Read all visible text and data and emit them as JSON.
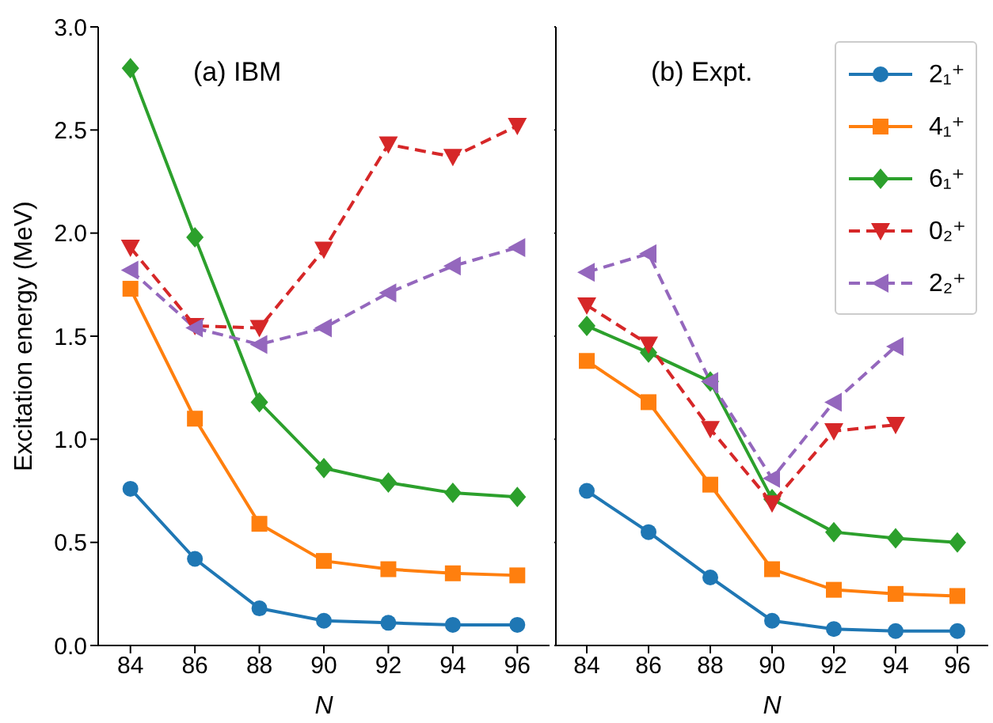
{
  "chart_data": [
    {
      "type": "line",
      "xlabel": "N",
      "ylabel": "Excitation energy (MeV)",
      "annotations": [
        "(a) IBM"
      ],
      "x": [
        84,
        86,
        88,
        90,
        92,
        94,
        96
      ],
      "xlim": [
        83,
        97
      ],
      "xticks": [
        84,
        86,
        88,
        90,
        92,
        94,
        96
      ],
      "ylim": [
        0,
        3
      ],
      "yticks": [
        {
          "value": 0,
          "label": "0.0"
        },
        {
          "value": 0.5,
          "label": "0.5"
        },
        {
          "value": 1,
          "label": "1.0"
        },
        {
          "value": 1.5,
          "label": "1.5"
        },
        {
          "value": 2,
          "label": "2.0"
        },
        {
          "value": 2.5,
          "label": "2.5"
        },
        {
          "value": 3,
          "label": "3.0"
        }
      ],
      "grid": false,
      "legend": false,
      "series": [
        {
          "color": "#1f77b4",
          "marker": "circle",
          "line_style": "solid",
          "values": [
            0.76,
            0.42,
            0.18,
            0.12,
            0.11,
            0.1,
            0.1
          ]
        },
        {
          "color": "#ff7f0e",
          "marker": "square",
          "line_style": "solid",
          "values": [
            1.73,
            1.1,
            0.59,
            0.41,
            0.37,
            0.35,
            0.34
          ]
        },
        {
          "color": "#2ca02c",
          "marker": "diamond",
          "line_style": "solid",
          "values": [
            2.8,
            1.98,
            1.18,
            0.86,
            0.79,
            0.74,
            0.72
          ]
        },
        {
          "color": "#d62728",
          "marker": "triangle-down",
          "line_style": "dashed",
          "values": [
            1.93,
            1.55,
            1.54,
            1.92,
            2.43,
            2.37,
            2.52
          ]
        },
        {
          "color": "#9467bd",
          "marker": "triangle-left",
          "line_style": "dashed",
          "values": [
            1.82,
            1.54,
            1.46,
            1.54,
            1.71,
            1.84,
            1.93
          ]
        }
      ]
    },
    {
      "type": "line",
      "xlabel": "N",
      "annotations": [
        "(b) Expt."
      ],
      "x": [
        84,
        86,
        88,
        90,
        92,
        94,
        96
      ],
      "xlim": [
        83,
        97
      ],
      "xticks": [
        84,
        86,
        88,
        90,
        92,
        94,
        96
      ],
      "ylim": [
        0,
        3
      ],
      "yticks": [
        0,
        0.5,
        1,
        1.5,
        2,
        2.5,
        3
      ],
      "tick_labels": "x",
      "grid": false,
      "legend": "top right",
      "series": [
        {
          "name": "2₁⁺",
          "color": "#1f77b4",
          "marker": "circle",
          "line_style": "solid",
          "values": [
            0.75,
            0.55,
            0.33,
            0.12,
            0.08,
            0.07,
            0.07
          ]
        },
        {
          "name": "4₁⁺",
          "color": "#ff7f0e",
          "marker": "square",
          "line_style": "solid",
          "values": [
            1.38,
            1.18,
            0.78,
            0.37,
            0.27,
            0.25,
            0.24
          ]
        },
        {
          "name": "6₁⁺",
          "color": "#2ca02c",
          "marker": "diamond",
          "line_style": "solid",
          "values": [
            1.55,
            1.42,
            1.28,
            0.71,
            0.55,
            0.52,
            0.5
          ]
        },
        {
          "name": "0₂⁺",
          "color": "#d62728",
          "marker": "triangle-down",
          "line_style": "dashed",
          "values": [
            1.65,
            1.46,
            1.05,
            0.69,
            1.04,
            1.07,
            null
          ]
        },
        {
          "name": "2₂⁺",
          "color": "#9467bd",
          "marker": "triangle-left",
          "line_style": "dashed",
          "values": [
            1.81,
            1.9,
            1.28,
            0.81,
            1.18,
            1.45,
            null
          ]
        }
      ]
    }
  ]
}
